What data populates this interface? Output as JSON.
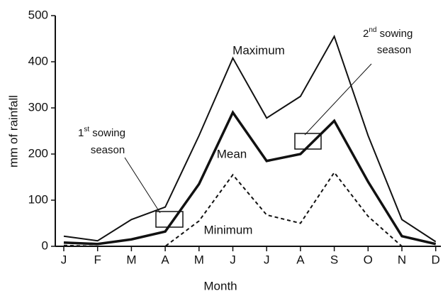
{
  "chart_data": {
    "type": "line",
    "x_label": "Month",
    "y_label": "mm of rainfall",
    "categories": [
      "J",
      "F",
      "M",
      "A",
      "M",
      "J",
      "J",
      "A",
      "S",
      "O",
      "N",
      "D"
    ],
    "series": [
      {
        "name": "Maximum",
        "color": "#111111",
        "linewidth": 2,
        "dash": false,
        "values": [
          22,
          12,
          58,
          85,
          240,
          408,
          278,
          325,
          455,
          240,
          58,
          10
        ]
      },
      {
        "name": "Mean",
        "color": "#111111",
        "linewidth": 3.5,
        "dash": false,
        "values": [
          8,
          5,
          15,
          32,
          135,
          290,
          185,
          200,
          272,
          140,
          22,
          5
        ]
      },
      {
        "name": "Minimum",
        "color": "#111111",
        "linewidth": 2,
        "dash": true,
        "values": [
          2,
          0,
          0,
          0,
          55,
          155,
          68,
          50,
          160,
          65,
          0,
          0
        ]
      }
    ],
    "ylim": [
      0,
      500
    ],
    "yticks": [
      0,
      100,
      200,
      300,
      400,
      500
    ],
    "grid": false,
    "annotations": [
      {
        "num": "1",
        "sup": "st",
        "rest": " sowing",
        "line2": "season"
      },
      {
        "num": "2",
        "sup": "nd",
        "rest": " sowing",
        "line2": "season"
      }
    ]
  }
}
